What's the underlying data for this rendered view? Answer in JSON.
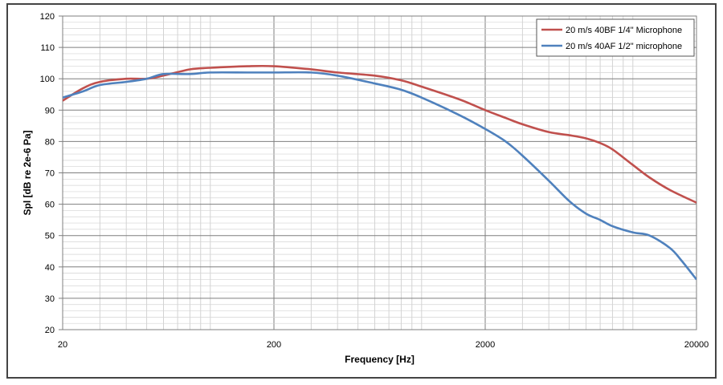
{
  "chart_data": {
    "type": "line",
    "xlabel": "Frequency [Hz]",
    "ylabel": "Spl [dB re 2e-6 Pa]",
    "x_scale": "log",
    "xlim": [
      20,
      20000
    ],
    "ylim": [
      20,
      120
    ],
    "x_ticks": [
      20,
      200,
      2000,
      20000
    ],
    "y_ticks": [
      20,
      30,
      40,
      50,
      60,
      70,
      80,
      90,
      100,
      110,
      120
    ],
    "grid": true,
    "legend_position": "top-right",
    "series": [
      {
        "name": "20 m/s  40BF 1/4\" Microphone",
        "color": "#c0504d",
        "x": [
          20,
          25,
          30,
          40,
          50,
          60,
          80,
          100,
          150,
          200,
          300,
          400,
          600,
          800,
          1000,
          1500,
          2000,
          2500,
          3000,
          4000,
          5000,
          6000,
          7000,
          8000,
          10000,
          12000,
          15000,
          20000
        ],
        "y": [
          93,
          97,
          99,
          100,
          100,
          101,
          103,
          103.5,
          104,
          104,
          103,
          102,
          101,
          99.5,
          97.5,
          93.5,
          90,
          87.5,
          85.5,
          83,
          82,
          81,
          79.5,
          77.5,
          72.5,
          68.5,
          64.5,
          60.5
        ]
      },
      {
        "name": "20 m/s  40AF 1/2\" microphone",
        "color": "#4f81bd",
        "x": [
          20,
          25,
          30,
          40,
          50,
          60,
          80,
          100,
          150,
          200,
          300,
          400,
          600,
          800,
          1000,
          1500,
          2000,
          2500,
          3000,
          4000,
          5000,
          6000,
          7000,
          8000,
          10000,
          12000,
          15000,
          17000,
          20000
        ],
        "y": [
          94,
          96,
          98,
          99,
          100,
          101.5,
          101.5,
          102,
          102,
          102,
          102,
          101,
          98.5,
          96.5,
          94,
          88.5,
          84,
          80,
          75.5,
          67.5,
          61,
          57,
          55,
          53,
          51,
          50,
          46,
          42,
          36
        ]
      }
    ]
  }
}
